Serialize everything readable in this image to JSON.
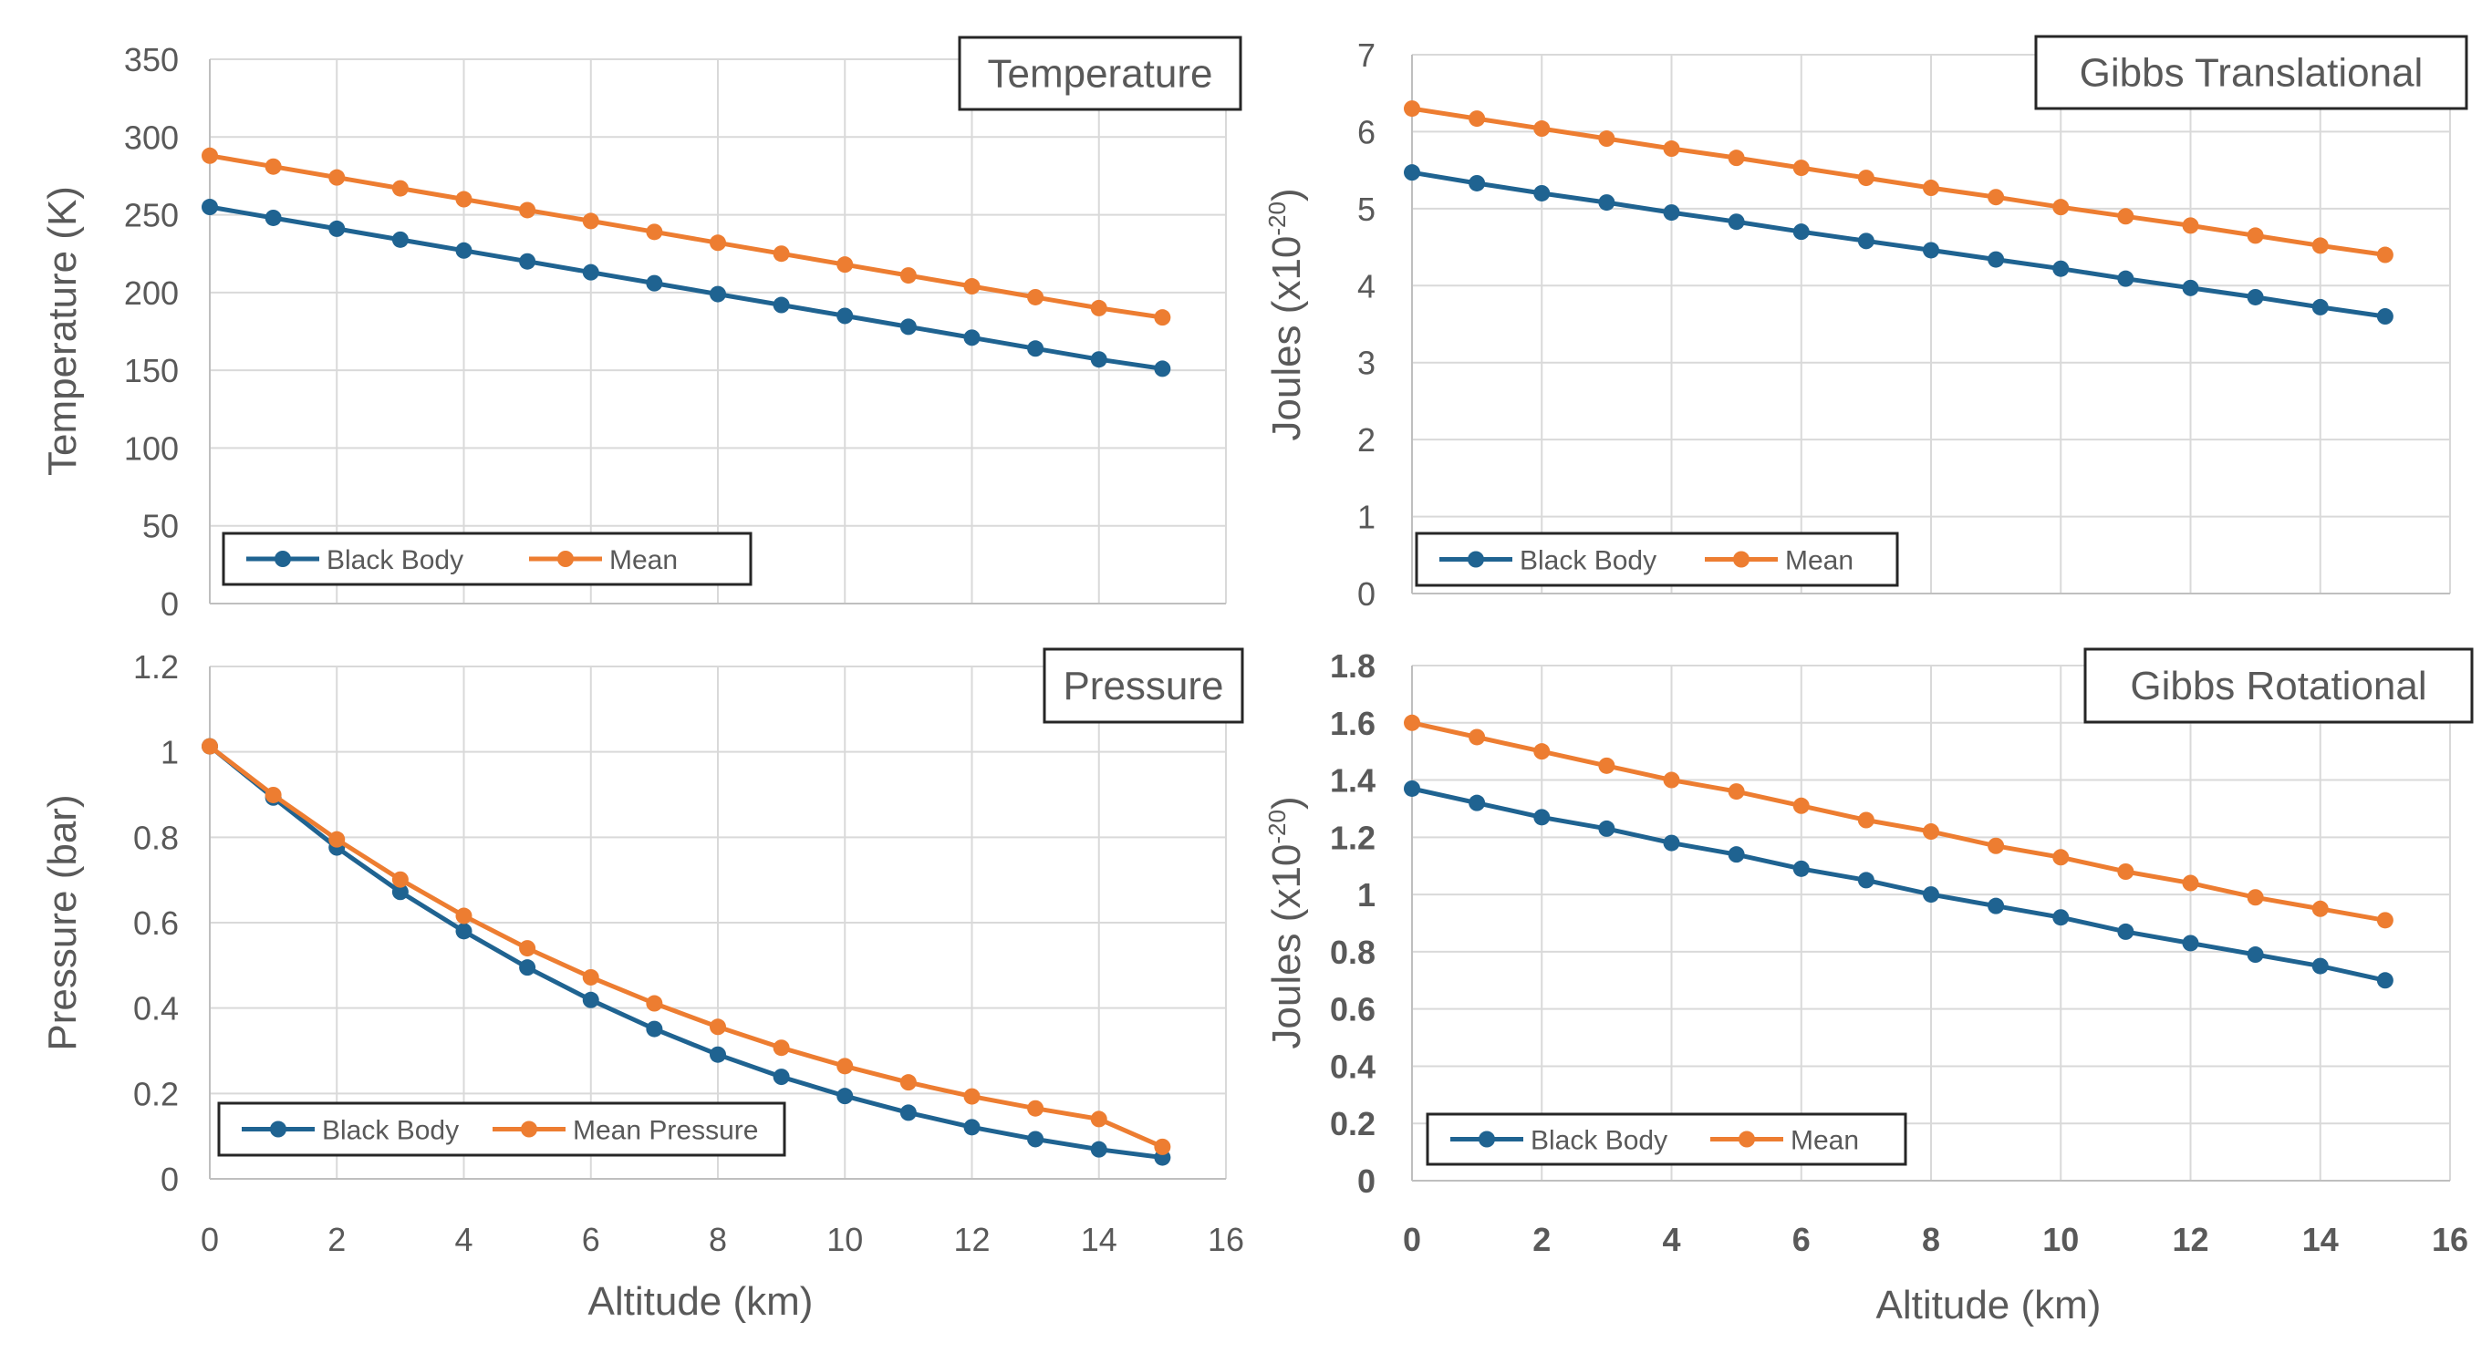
{
  "chart_data": [
    {
      "type": "line",
      "title": "Temperature",
      "xlabel": "",
      "ylabel": "Temperature (K)",
      "xlim": [
        0,
        16
      ],
      "ylim": [
        0,
        350
      ],
      "xticks": [],
      "yticks": [
        "0",
        "50",
        "100",
        "150",
        "200",
        "250",
        "300",
        "350"
      ],
      "x": [
        0,
        1,
        2,
        3,
        4,
        5,
        6,
        7,
        8,
        9,
        10,
        11,
        12,
        13,
        14,
        15
      ],
      "series": [
        {
          "name": "Black Body",
          "color": "#1f6391",
          "values": [
            255,
            248,
            241,
            234,
            227,
            220,
            213,
            206,
            199,
            192,
            185,
            178,
            171,
            164,
            157,
            151
          ]
        },
        {
          "name": "Mean",
          "color": "#ed7d31",
          "values": [
            288,
            281,
            274,
            267,
            260,
            253,
            246,
            239,
            232,
            225,
            218,
            211,
            204,
            197,
            190,
            184
          ]
        }
      ]
    },
    {
      "type": "line",
      "title": "Gibbs Translational",
      "xlabel": "",
      "ylabel": "Joules",
      "ylabel_unit": "(x10",
      "ylabel_exp": "-20",
      "ylabel_close": ")",
      "xlim": [
        0,
        16
      ],
      "ylim": [
        0,
        7
      ],
      "xticks": [],
      "yticks": [
        "0",
        "1",
        "2",
        "3",
        "4",
        "5",
        "6",
        "7"
      ],
      "x": [
        0,
        1,
        2,
        3,
        4,
        5,
        6,
        7,
        8,
        9,
        10,
        11,
        12,
        13,
        14,
        15
      ],
      "series": [
        {
          "name": "Black Body",
          "color": "#1f6391",
          "values": [
            5.47,
            5.33,
            5.2,
            5.08,
            4.95,
            4.83,
            4.7,
            4.58,
            4.46,
            4.34,
            4.22,
            4.09,
            3.97,
            3.85,
            3.72,
            3.6
          ]
        },
        {
          "name": "Mean",
          "color": "#ed7d31",
          "values": [
            6.3,
            6.17,
            6.04,
            5.91,
            5.78,
            5.66,
            5.53,
            5.4,
            5.27,
            5.15,
            5.02,
            4.9,
            4.78,
            4.65,
            4.52,
            4.4
          ]
        }
      ]
    },
    {
      "type": "line",
      "title": "Pressure",
      "xlabel": "Altitude (km)",
      "ylabel": "Pressure (bar)",
      "xlim": [
        0,
        16
      ],
      "ylim": [
        0,
        1.2
      ],
      "xticks": [
        "0",
        "2",
        "4",
        "6",
        "8",
        "10",
        "12",
        "14",
        "16"
      ],
      "yticks": [
        "0",
        "0.2",
        "0.4",
        "0.6",
        "0.8",
        "1",
        "1.2"
      ],
      "x": [
        0,
        1,
        2,
        3,
        4,
        5,
        6,
        7,
        8,
        9,
        10,
        11,
        12,
        13,
        14,
        15
      ],
      "series": [
        {
          "name": "Black Body",
          "color": "#1f6391",
          "values": [
            1.013,
            0.893,
            0.776,
            0.672,
            0.58,
            0.495,
            0.419,
            0.351,
            0.291,
            0.239,
            0.194,
            0.155,
            0.121,
            0.093,
            0.069,
            0.05
          ]
        },
        {
          "name": "Mean Pressure",
          "color": "#ed7d31",
          "values": [
            1.013,
            0.899,
            0.795,
            0.701,
            0.616,
            0.54,
            0.472,
            0.411,
            0.356,
            0.307,
            0.264,
            0.226,
            0.193,
            0.165,
            0.14,
            0.075
          ]
        }
      ]
    },
    {
      "type": "line",
      "title": "Gibbs Rotational",
      "xlabel": "Altitude (km)",
      "ylabel": "Joules",
      "ylabel_unit": "(x10",
      "ylabel_exp": "-20",
      "ylabel_close": ")",
      "xlim": [
        0,
        16
      ],
      "ylim": [
        0,
        1.8
      ],
      "xticks": [
        "0",
        "2",
        "4",
        "6",
        "8",
        "10",
        "12",
        "14",
        "16"
      ],
      "yticks": [
        "0",
        "0.2",
        "0.4",
        "0.6",
        "0.8",
        "1",
        "1.2",
        "1.4",
        "1.6",
        "1.8"
      ],
      "x": [
        0,
        1,
        2,
        3,
        4,
        5,
        6,
        7,
        8,
        9,
        10,
        11,
        12,
        13,
        14,
        15
      ],
      "series": [
        {
          "name": "Black Body",
          "color": "#1f6391",
          "values": [
            1.37,
            1.32,
            1.27,
            1.23,
            1.18,
            1.14,
            1.09,
            1.05,
            1.0,
            0.96,
            0.92,
            0.87,
            0.83,
            0.79,
            0.75,
            0.7
          ]
        },
        {
          "name": "Mean",
          "color": "#ed7d31",
          "values": [
            1.6,
            1.55,
            1.5,
            1.45,
            1.4,
            1.36,
            1.31,
            1.26,
            1.22,
            1.17,
            1.13,
            1.08,
            1.04,
            0.99,
            0.95,
            0.91
          ]
        }
      ]
    }
  ]
}
